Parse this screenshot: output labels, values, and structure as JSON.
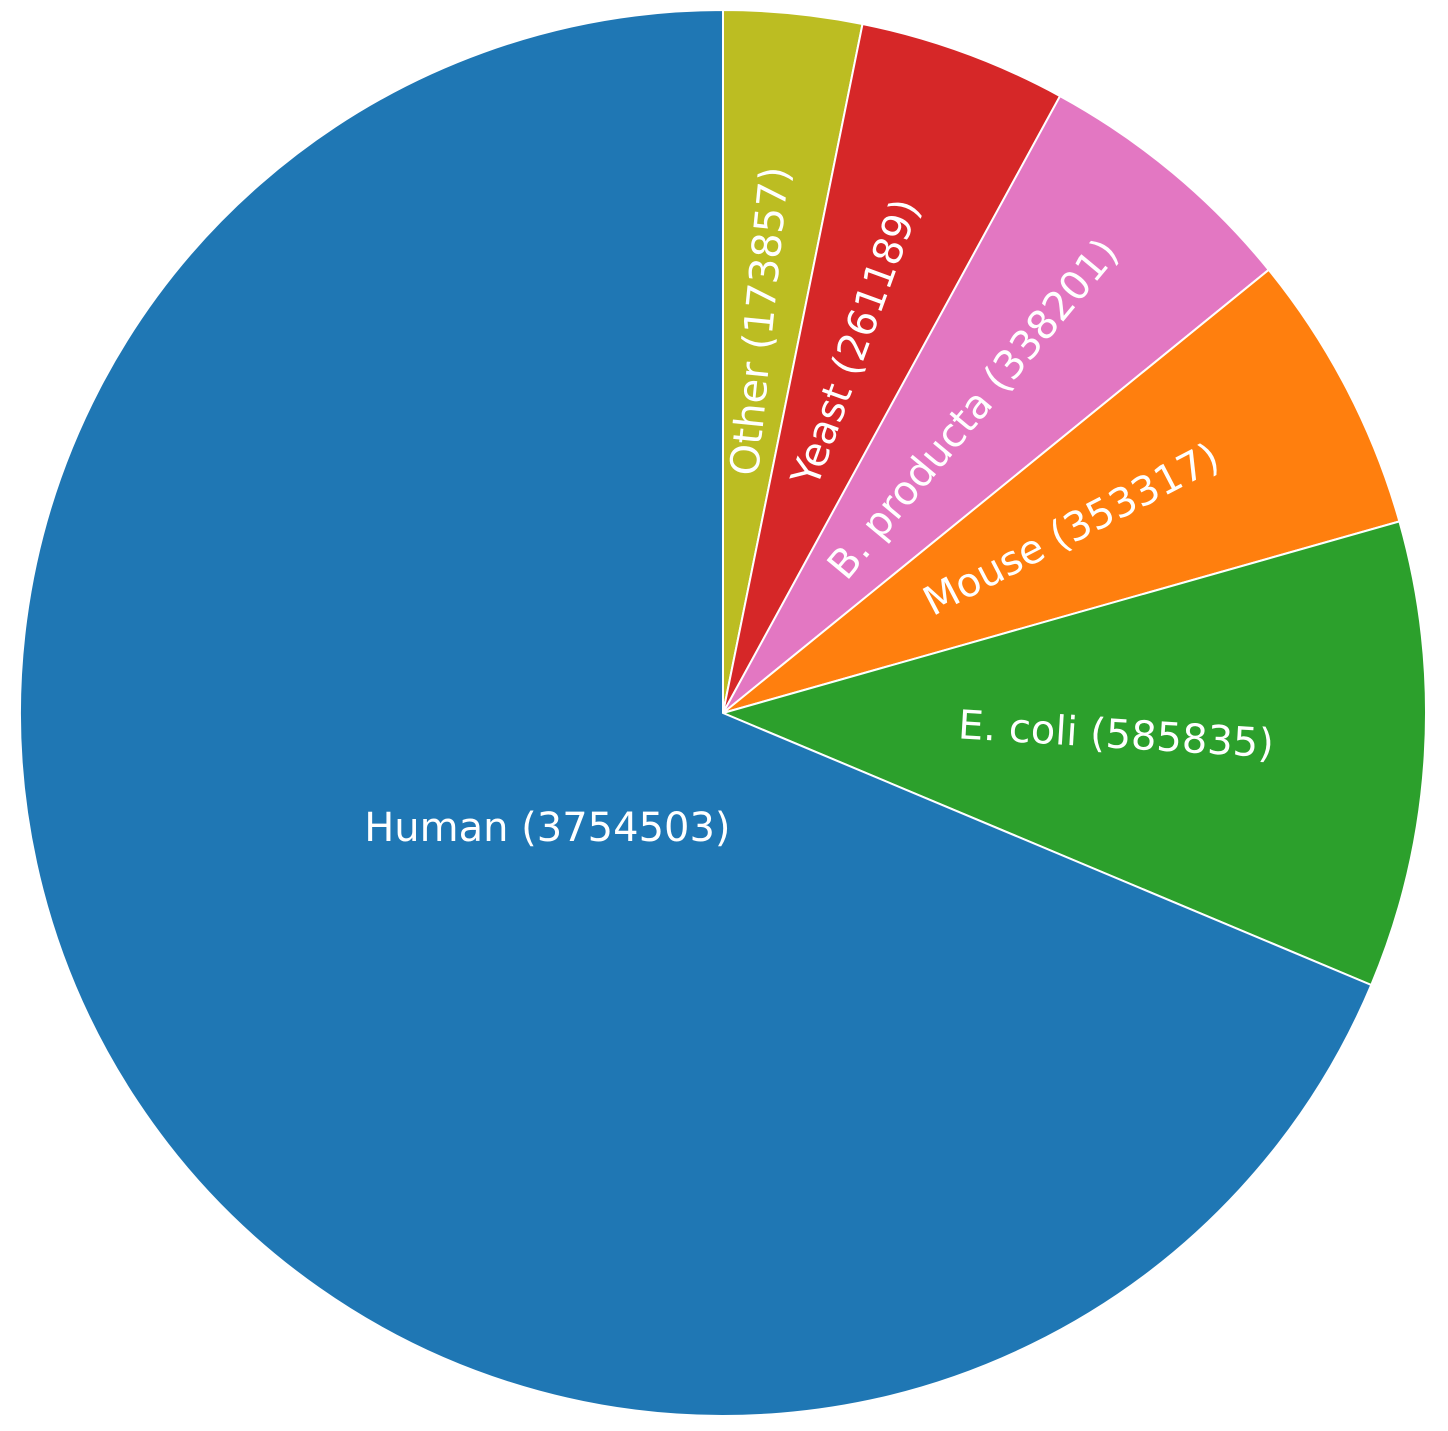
{
  "chart_data": {
    "type": "pie",
    "values": [
      173857,
      261189,
      338201,
      353317,
      585835,
      3754503
    ],
    "value_labels": [
      "Other (173857)",
      "Yeast (261189)",
      "B. producta (338201)",
      "Mouse (353317)",
      "E. coli (585835)",
      "Human (3754503)"
    ],
    "colors": [
      "#bcbd22",
      "#d62728",
      "#e377c2",
      "#ff7f0e",
      "#2ca02c",
      "#1f77b4"
    ]
  }
}
